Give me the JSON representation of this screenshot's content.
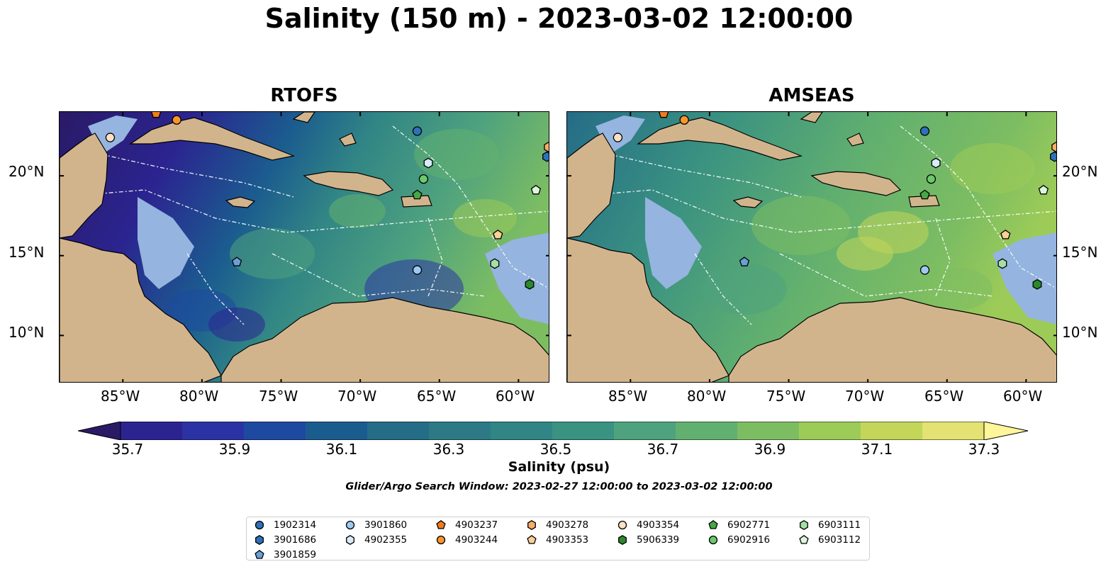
{
  "title": "Salinity (150 m) - 2023-03-02 12:00:00",
  "panels": [
    {
      "title": "RTOFS"
    },
    {
      "title": "AMSEAS"
    }
  ],
  "lon_ticks": [
    "85°W",
    "80°W",
    "75°W",
    "70°W",
    "65°W",
    "60°W"
  ],
  "lat_ticks": [
    "20°N",
    "15°N",
    "10°N"
  ],
  "colorbar": {
    "label": "Salinity (psu)",
    "ticks": [
      "35.7",
      "35.9",
      "36.1",
      "36.3",
      "36.5",
      "36.7",
      "36.9",
      "37.1",
      "37.3"
    ],
    "colors": [
      "#2a1a66",
      "#2b2490",
      "#2b33a4",
      "#1e49a0",
      "#1b5c8f",
      "#256c87",
      "#2d7a86",
      "#318585",
      "#3a9281",
      "#4fa27e",
      "#62b06f",
      "#7dbd62",
      "#9ccb58",
      "#c3d65a",
      "#e4e272",
      "#fff59a"
    ]
  },
  "window_note": "Glider/Argo Search Window: 2023-02-27 12:00:00 to 2023-03-02 12:00:00",
  "legend": [
    {
      "label": "1902314",
      "marker": "circle",
      "color": "#2f70b9"
    },
    {
      "label": "3901686",
      "marker": "hexagon",
      "color": "#2f70b9"
    },
    {
      "label": "3901859",
      "marker": "pentagon",
      "color": "#6b9fd6"
    },
    {
      "label": "3901860",
      "marker": "circle",
      "color": "#9ec9ef"
    },
    {
      "label": "4902355",
      "marker": "hexagon",
      "color": "#d7ebfa"
    },
    {
      "label": "4903237",
      "marker": "pentagon",
      "color": "#f07b1a"
    },
    {
      "label": "4903244",
      "marker": "circle",
      "color": "#f7952d"
    },
    {
      "label": "4903278",
      "marker": "hexagon",
      "color": "#f6ad67"
    },
    {
      "label": "4903353",
      "marker": "pentagon",
      "color": "#fbcf98"
    },
    {
      "label": "4903354",
      "marker": "circle",
      "color": "#fde1c6"
    },
    {
      "label": "5906339",
      "marker": "hexagon",
      "color": "#2a8a2a"
    },
    {
      "label": "6902771",
      "marker": "pentagon",
      "color": "#46a846"
    },
    {
      "label": "6902916",
      "marker": "circle",
      "color": "#6bc96b"
    },
    {
      "label": "6903111",
      "marker": "hexagon",
      "color": "#a4e0a4"
    },
    {
      "label": "6903112",
      "marker": "pentagon",
      "color": "#dcf6dc"
    }
  ],
  "map_extent": {
    "lon": [
      -89,
      -58
    ],
    "lat": [
      7,
      24
    ]
  },
  "floats": [
    {
      "id": "1902314",
      "lon": -66.4,
      "lat": 22.8
    },
    {
      "id": "3901686",
      "lon": -58.2,
      "lat": 21.2
    },
    {
      "id": "3901859",
      "lon": -77.8,
      "lat": 14.6
    },
    {
      "id": "3901860",
      "lon": -66.4,
      "lat": 14.1
    },
    {
      "id": "4902355",
      "lon": -65.7,
      "lat": 20.8
    },
    {
      "id": "4903237",
      "lon": -82.9,
      "lat": 23.9
    },
    {
      "id": "4903244",
      "lon": -81.6,
      "lat": 23.5
    },
    {
      "id": "4903278",
      "lon": -58.1,
      "lat": 21.8
    },
    {
      "id": "4903353",
      "lon": -61.3,
      "lat": 16.3
    },
    {
      "id": "4903354",
      "lon": -85.8,
      "lat": 22.4
    },
    {
      "id": "5906339",
      "lon": -59.3,
      "lat": 13.2
    },
    {
      "id": "6902771",
      "lon": -66.4,
      "lat": 18.8
    },
    {
      "id": "6902916",
      "lon": -66.0,
      "lat": 19.8
    },
    {
      "id": "6903111",
      "lon": -61.5,
      "lat": 14.5
    },
    {
      "id": "6903112",
      "lon": -58.9,
      "lat": 19.1
    }
  ]
}
